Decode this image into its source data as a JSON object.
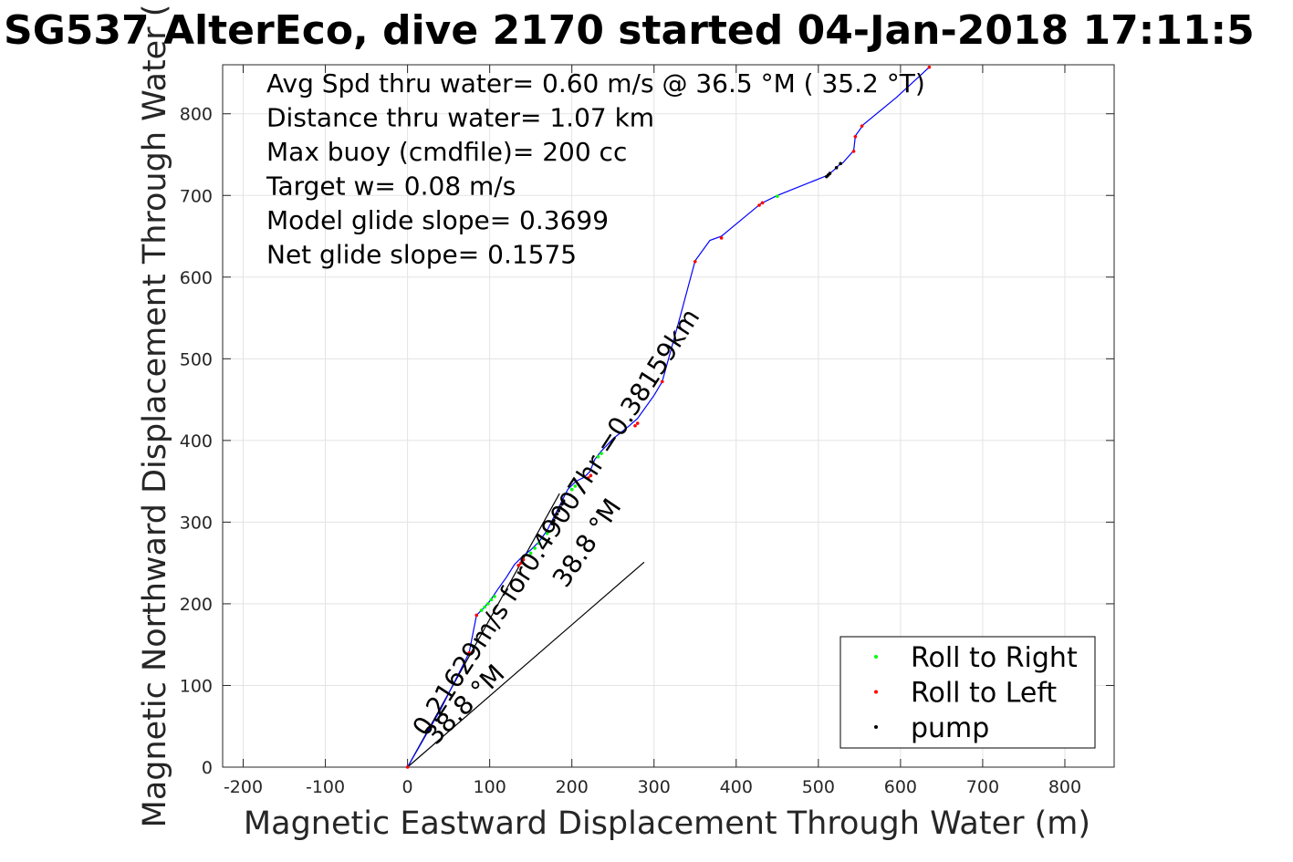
{
  "chart_data": {
    "type": "line",
    "title": "SG537 AlterEco, dive 2170 started 04-Jan-2018 17:11:5",
    "xlabel": "Magnetic Eastward Displacement Through Water (m)",
    "ylabel": "Magnetic Northward Displacement Through Water (",
    "xlim": [
      -225,
      860
    ],
    "ylim": [
      0,
      860
    ],
    "xticks": [
      -200,
      -100,
      0,
      100,
      200,
      300,
      400,
      500,
      600,
      700,
      800
    ],
    "yticks": [
      0,
      100,
      200,
      300,
      400,
      500,
      600,
      700,
      800
    ],
    "xtick_labels": [
      "-200",
      "-100",
      "0",
      "100",
      "200",
      "300",
      "400",
      "500",
      "600",
      "700",
      "800"
    ],
    "ytick_labels": [
      "0",
      "100",
      "200",
      "300",
      "400",
      "500",
      "600",
      "700",
      "800"
    ],
    "grid": true,
    "legend_position": "bottom-right",
    "stats": [
      "Avg Spd thru water=  0.60 m/s @  36.5 °M ( 35.2 °T)",
      "Distance thru water=  1.07 km",
      "Max buoy (cmdfile)= 200 cc",
      "Target w= 0.08 m/s",
      "Model glide slope= 0.3699",
      "Net glide slope= 0.1575"
    ],
    "track": {
      "color": "#0000ff",
      "x": [
        0,
        40,
        75,
        84,
        90,
        100,
        110,
        120,
        130,
        140,
        150,
        160,
        165,
        170,
        175,
        180,
        185,
        190,
        195,
        205,
        215,
        222,
        228,
        235,
        250,
        270,
        280,
        300,
        310,
        330,
        350,
        368,
        382,
        430,
        450,
        500,
        512,
        520,
        525,
        530,
        543,
        545,
        555,
        595,
        635
      ],
      "y": [
        0,
        70,
        140,
        186,
        192,
        203,
        218,
        232,
        248,
        258,
        266,
        276,
        283,
        290,
        300,
        310,
        320,
        330,
        340,
        350,
        355,
        362,
        377,
        386,
        402,
        418,
        427,
        455,
        472,
        545,
        620,
        645,
        650,
        690,
        700,
        720,
        725,
        732,
        737,
        740,
        755,
        773,
        787,
        820,
        857
      ]
    },
    "series": [
      {
        "name": "Roll to Right",
        "color": "#00ff00",
        "x": [
          90,
          94,
          98,
          102,
          106,
          150,
          155,
          160,
          165,
          170,
          200,
          204,
          232,
          236,
          450
        ],
        "y": [
          192,
          196,
          200,
          205,
          209,
          262,
          268,
          274,
          280,
          286,
          340,
          344,
          380,
          384,
          699
        ]
      },
      {
        "name": "Roll to Left",
        "color": "#ff0000",
        "x": [
          0,
          75,
          84,
          135,
          138,
          141,
          220,
          223,
          277,
          280,
          310,
          350,
          382,
          428,
          432,
          543,
          545,
          553,
          635
        ],
        "y": [
          0,
          140,
          186,
          247,
          250,
          254,
          354,
          357,
          418,
          421,
          472,
          619,
          648,
          688,
          691,
          754,
          772,
          785,
          857
        ]
      },
      {
        "name": "pump",
        "color": "#000000",
        "x": [
          176,
          178,
          180,
          182,
          184,
          186,
          188,
          190,
          510,
          512,
          514,
          522,
          527
        ],
        "y": [
          298,
          302,
          306,
          310,
          314,
          318,
          322,
          326,
          723,
          725,
          727,
          734,
          739
        ]
      }
    ],
    "reference_lines": [
      {
        "from": [
          0,
          0
        ],
        "to": [
          185,
          335
        ],
        "color": "#000000"
      },
      {
        "from": [
          0,
          0
        ],
        "to": [
          288,
          251
        ],
        "color": "#000000"
      }
    ],
    "annotations": [
      {
        "text": "38.8 °M",
        "at": [
          34,
          26
        ],
        "rotation": -45
      },
      {
        "text": "0.21629m/s for0.49007hr =0.38159km",
        "at": [
          23,
          36
        ],
        "rotation": -57
      },
      {
        "text": "38.8 °M",
        "at": [
          193,
          218
        ],
        "rotation": -56
      }
    ]
  }
}
